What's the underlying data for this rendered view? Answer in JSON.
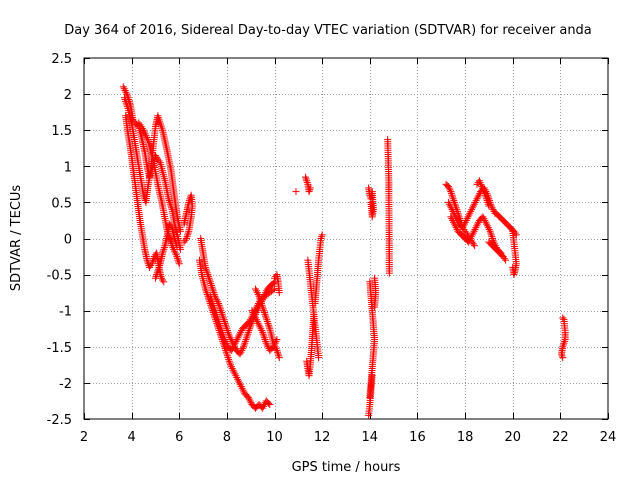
{
  "chart_data": {
    "type": "scatter",
    "title": "Day 364 of 2016, Sidereal Day-to-day VTEC variation (SDTVAR) for receiver anda",
    "xlabel": "GPS time / hours",
    "ylabel": "SDTVAR / TECUs",
    "xlim": [
      2,
      24
    ],
    "ylim": [
      -2.5,
      2.5
    ],
    "xticks": [
      2,
      4,
      6,
      8,
      10,
      12,
      14,
      16,
      18,
      20,
      22,
      24
    ],
    "xtick_labels": [
      "2",
      "4",
      "6",
      "8",
      "10",
      "12",
      "14",
      "16",
      "18",
      "20",
      "22",
      "24"
    ],
    "yticks": [
      -2.5,
      -2,
      -1.5,
      -1,
      -0.5,
      0,
      0.5,
      1,
      1.5,
      2,
      2.5
    ],
    "ytick_labels": [
      "-2.5",
      "-2",
      "-1.5",
      "-1",
      "-0.5",
      "0",
      "0.5",
      "1",
      "1.5",
      "2",
      "2.5"
    ],
    "grid": true,
    "marker": "+",
    "color": "#ff0000",
    "series": [
      {
        "name": "SDTVAR",
        "segments": [
          {
            "x": [
              3.65,
              3.8,
              3.95,
              4.05,
              4.15,
              4.3,
              4.45,
              4.55,
              4.65,
              4.75,
              4.85,
              5.0,
              5.2,
              5.4,
              5.55,
              5.7,
              5.8,
              5.95,
              6.05
            ],
            "y": [
              2.1,
              2.0,
              1.85,
              1.65,
              1.6,
              1.55,
              1.35,
              1.2,
              1.0,
              0.85,
              0.95,
              1.15,
              1.05,
              0.8,
              0.55,
              0.4,
              0.2,
              0.0,
              -0.15
            ]
          },
          {
            "x": [
              3.7,
              3.85,
              4.0,
              4.1,
              4.2,
              4.3,
              4.4,
              4.5,
              4.6,
              4.7,
              4.8,
              4.9,
              5.0,
              5.1,
              5.3,
              5.5,
              5.65,
              5.75,
              5.85,
              5.95,
              6.05
            ],
            "y": [
              1.95,
              1.8,
              1.6,
              1.4,
              1.2,
              1.0,
              0.8,
              0.6,
              0.5,
              0.75,
              0.95,
              1.25,
              1.55,
              1.7,
              1.5,
              1.2,
              0.95,
              0.7,
              0.45,
              0.25,
              0.1
            ]
          },
          {
            "x": [
              3.75,
              3.85,
              3.95,
              4.05,
              4.15,
              4.25,
              4.35,
              4.45,
              4.55,
              4.65,
              4.75,
              4.85,
              4.95,
              5.05,
              5.15,
              5.25,
              5.35
            ],
            "y": [
              1.7,
              1.45,
              1.25,
              1.0,
              0.75,
              0.5,
              0.25,
              0.05,
              -0.15,
              -0.3,
              -0.4,
              -0.35,
              -0.25,
              -0.2,
              -0.4,
              -0.55,
              -0.6
            ]
          },
          {
            "x": [
              4.3,
              4.5,
              4.7,
              4.9,
              5.1,
              5.3,
              5.5,
              5.7,
              5.9,
              6.0
            ],
            "y": [
              1.6,
              1.5,
              1.35,
              1.1,
              0.75,
              0.45,
              0.1,
              -0.1,
              -0.25,
              -0.35
            ]
          },
          {
            "x": [
              5.0,
              5.1,
              5.2,
              5.3,
              5.4,
              5.5,
              5.6,
              5.7,
              5.8,
              5.9
            ],
            "y": [
              -0.55,
              -0.45,
              -0.35,
              -0.2,
              -0.1,
              0.05,
              0.2,
              0.15,
              0.0,
              -0.1
            ]
          },
          {
            "x": [
              6.2,
              6.3,
              6.4,
              6.5,
              6.55,
              6.5,
              6.4,
              6.3,
              6.2
            ],
            "y": [
              0.2,
              0.35,
              0.5,
              0.6,
              0.45,
              0.3,
              0.1,
              0.0,
              -0.05
            ]
          },
          {
            "x": [
              6.9,
              7.0,
              7.1,
              7.2,
              7.35,
              7.5,
              7.65,
              7.8,
              7.95,
              8.1,
              8.25,
              8.4,
              8.55,
              8.7,
              8.85,
              9.0,
              9.2,
              9.4,
              9.6,
              9.8,
              10.0
            ],
            "y": [
              0.0,
              -0.2,
              -0.4,
              -0.5,
              -0.65,
              -0.8,
              -0.9,
              -1.05,
              -1.2,
              -1.35,
              -1.45,
              -1.55,
              -1.6,
              -1.5,
              -1.35,
              -1.2,
              -1.05,
              -0.9,
              -0.8,
              -0.75,
              -0.7
            ]
          },
          {
            "x": [
              6.85,
              6.95,
              7.1,
              7.25,
              7.4,
              7.55,
              7.7,
              7.85,
              8.0,
              8.15,
              8.3,
              8.45,
              8.6
            ],
            "y": [
              -0.3,
              -0.5,
              -0.7,
              -0.85,
              -1.0,
              -1.15,
              -1.3,
              -1.45,
              -1.6,
              -1.75,
              -1.85,
              -1.95,
              -2.05
            ]
          },
          {
            "x": [
              7.3,
              7.45,
              7.6,
              7.75,
              7.9,
              8.05,
              8.2,
              8.35,
              8.5,
              8.65,
              8.8,
              8.95,
              9.1,
              9.25,
              9.4,
              9.55,
              9.7,
              9.85,
              10.0
            ],
            "y": [
              -0.8,
              -0.95,
              -1.1,
              -1.25,
              -1.4,
              -1.5,
              -1.55,
              -1.45,
              -1.35,
              -1.25,
              -1.2,
              -1.15,
              -1.05,
              -0.95,
              -0.85,
              -0.8,
              -0.7,
              -0.65,
              -0.6
            ]
          },
          {
            "x": [
              8.6,
              8.75,
              8.9,
              9.05,
              9.2,
              9.35,
              9.5,
              9.65,
              9.8
            ],
            "y": [
              -2.05,
              -2.15,
              -2.2,
              -2.3,
              -2.35,
              -2.3,
              -2.35,
              -2.25,
              -2.3
            ]
          },
          {
            "x": [
              9.2,
              9.35,
              9.5,
              9.65,
              9.8,
              9.95,
              10.1,
              10.2
            ],
            "y": [
              -0.7,
              -0.8,
              -0.95,
              -1.1,
              -1.25,
              -1.45,
              -1.55,
              -1.65
            ]
          },
          {
            "x": [
              9.05,
              9.2,
              9.35,
              9.5,
              9.65,
              9.8,
              9.95,
              10.1
            ],
            "y": [
              -1.0,
              -1.1,
              -1.2,
              -1.3,
              -1.45,
              -1.55,
              -1.5,
              -1.4
            ]
          },
          {
            "x": [
              10.0,
              10.1,
              10.15,
              10.2
            ],
            "y": [
              -0.55,
              -0.5,
              -0.6,
              -0.75
            ]
          },
          {
            "x": [
              11.3,
              11.35,
              11.4,
              11.45,
              11.5
            ],
            "y": [
              0.85,
              0.8,
              0.75,
              0.65,
              0.7
            ]
          },
          {
            "x": [
              11.4,
              11.45,
              11.5,
              11.55,
              11.6,
              11.65,
              11.7,
              11.75,
              11.8,
              11.85
            ],
            "y": [
              -0.3,
              -0.45,
              -0.6,
              -0.75,
              -0.9,
              -1.05,
              -1.2,
              -1.35,
              -1.5,
              -1.65
            ]
          },
          {
            "x": [
              11.35,
              11.4,
              11.45,
              11.5,
              11.55,
              11.6,
              11.65
            ],
            "y": [
              -1.7,
              -1.8,
              -1.9,
              -1.75,
              -1.55,
              -1.3,
              -1.05
            ]
          },
          {
            "x": [
              11.7,
              11.75,
              11.8,
              11.85,
              11.9,
              11.95,
              12.0
            ],
            "y": [
              -0.9,
              -0.7,
              -0.5,
              -0.3,
              -0.15,
              0.0,
              0.05
            ]
          },
          {
            "x": [
              10.9
            ],
            "y": [
              0.65
            ]
          },
          {
            "x": [
              13.95,
              14.0,
              14.05,
              14.1,
              14.15,
              14.1,
              14.05
            ],
            "y": [
              0.7,
              0.6,
              0.55,
              0.65,
              0.4,
              0.3,
              0.5
            ]
          },
          {
            "x": [
              14.0,
              14.05,
              14.1,
              14.15,
              14.2,
              14.15,
              14.1,
              14.05,
              14.0
            ],
            "y": [
              -0.6,
              -0.8,
              -1.0,
              -1.2,
              -1.4,
              -1.6,
              -1.8,
              -2.0,
              -2.2
            ]
          },
          {
            "x": [
              13.95,
              14.0,
              14.05,
              14.1
            ],
            "y": [
              -2.45,
              -2.3,
              -2.1,
              -1.9
            ]
          },
          {
            "x": [
              14.2,
              14.25,
              14.2
            ],
            "y": [
              -0.55,
              -0.75,
              -0.95
            ]
          },
          {
            "x": [
              14.75,
              14.8,
              14.8,
              14.82
            ],
            "y": [
              1.37,
              0.78,
              0.65,
              -0.48
            ]
          },
          {
            "x": [
              17.2,
              17.3,
              17.4,
              17.5,
              17.6,
              17.7,
              17.8,
              17.9,
              18.0,
              18.1,
              18.2,
              18.3,
              18.4
            ],
            "y": [
              0.75,
              0.72,
              0.65,
              0.55,
              0.45,
              0.35,
              0.25,
              0.15,
              0.1,
              0.05,
              0.0,
              -0.05,
              -0.1
            ]
          },
          {
            "x": [
              17.3,
              17.45,
              17.6,
              17.75,
              17.9,
              18.05,
              18.2,
              18.35,
              18.5,
              18.65,
              18.8,
              18.95,
              19.1,
              19.25
            ],
            "y": [
              0.5,
              0.4,
              0.3,
              0.2,
              0.15,
              0.25,
              0.35,
              0.45,
              0.55,
              0.65,
              0.7,
              0.6,
              0.45,
              0.35
            ]
          },
          {
            "x": [
              17.4,
              17.55,
              17.7,
              17.85,
              18.0,
              18.15,
              18.3,
              18.45,
              18.6,
              18.75,
              18.9,
              19.05,
              19.2,
              19.35,
              19.5
            ],
            "y": [
              0.3,
              0.2,
              0.1,
              0.05,
              0.0,
              -0.05,
              0.05,
              0.15,
              0.25,
              0.3,
              0.2,
              0.1,
              -0.05,
              -0.15,
              -0.2
            ]
          },
          {
            "x": [
              18.5,
              18.6,
              18.7,
              18.8,
              18.9,
              19.0
            ],
            "y": [
              0.75,
              0.8,
              0.72,
              0.65,
              0.55,
              0.45
            ]
          },
          {
            "x": [
              19.3,
              19.45,
              19.6,
              19.75,
              19.9,
              20.05,
              20.15
            ],
            "y": [
              0.35,
              0.3,
              0.25,
              0.2,
              0.15,
              0.1,
              0.05
            ]
          },
          {
            "x": [
              19.0,
              19.15,
              19.3,
              19.45,
              19.6,
              19.7
            ],
            "y": [
              -0.05,
              -0.1,
              -0.15,
              -0.2,
              -0.25,
              -0.3
            ]
          },
          {
            "x": [
              20.0,
              20.05,
              20.1,
              20.15,
              20.1,
              20.05,
              20.0
            ],
            "y": [
              0.1,
              -0.05,
              -0.2,
              -0.35,
              -0.45,
              -0.5,
              -0.4
            ]
          },
          {
            "x": [
              22.1,
              22.15,
              22.2,
              22.2,
              22.15,
              22.1,
              22.05,
              22.1
            ],
            "y": [
              -1.1,
              -1.12,
              -1.3,
              -1.4,
              -1.45,
              -1.5,
              -1.6,
              -1.65
            ]
          }
        ]
      }
    ]
  }
}
